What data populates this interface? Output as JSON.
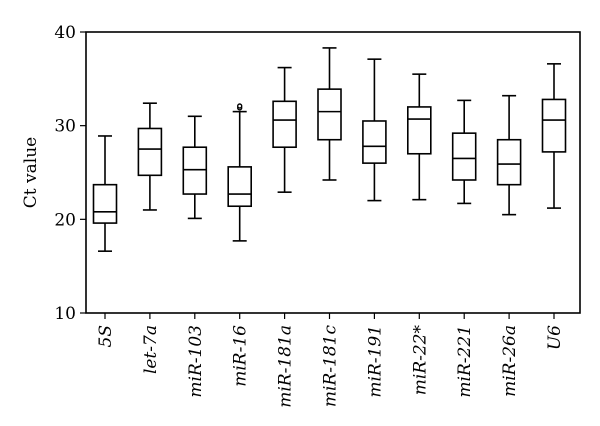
{
  "chart_data": {
    "type": "boxplot",
    "ylabel": "Ct value",
    "ylim": [
      10,
      40
    ],
    "yticks": [
      "10",
      "20",
      "30",
      "40"
    ],
    "grid": false,
    "categories": [
      "5S",
      "let-7a",
      "miR-103",
      "miR-16",
      "miR-181a",
      "miR-181c",
      "miR-191",
      "miR-22*",
      "miR-221",
      "miR-26a",
      "U6"
    ],
    "boxes": [
      {
        "label": "5S",
        "min": 16.6,
        "q1": 19.6,
        "median": 20.8,
        "q3": 23.7,
        "max": 28.9,
        "outliers": []
      },
      {
        "label": "let-7a",
        "min": 21.0,
        "q1": 24.7,
        "median": 27.5,
        "q3": 29.7,
        "max": 32.4,
        "outliers": []
      },
      {
        "label": "miR-103",
        "min": 20.1,
        "q1": 22.7,
        "median": 25.3,
        "q3": 27.7,
        "max": 31.0,
        "outliers": []
      },
      {
        "label": "miR-16",
        "min": 17.7,
        "q1": 21.4,
        "median": 22.7,
        "q3": 25.6,
        "max": 31.5,
        "outliers": [
          31.9,
          32.1
        ]
      },
      {
        "label": "miR-181a",
        "min": 22.9,
        "q1": 27.7,
        "median": 30.6,
        "q3": 32.6,
        "max": 36.2,
        "outliers": []
      },
      {
        "label": "miR-181c",
        "min": 24.2,
        "q1": 28.5,
        "median": 31.5,
        "q3": 33.9,
        "max": 38.3,
        "outliers": []
      },
      {
        "label": "miR-191",
        "min": 22.0,
        "q1": 26.0,
        "median": 27.8,
        "q3": 30.5,
        "max": 37.1,
        "outliers": []
      },
      {
        "label": "miR-22*",
        "min": 22.1,
        "q1": 27.0,
        "median": 30.7,
        "q3": 32.0,
        "max": 35.5,
        "outliers": []
      },
      {
        "label": "miR-221",
        "min": 21.7,
        "q1": 24.2,
        "median": 26.5,
        "q3": 29.2,
        "max": 32.7,
        "outliers": []
      },
      {
        "label": "miR-26a",
        "min": 20.5,
        "q1": 23.7,
        "median": 25.9,
        "q3": 28.5,
        "max": 33.2,
        "outliers": []
      },
      {
        "label": "U6",
        "min": 21.2,
        "q1": 27.2,
        "median": 30.6,
        "q3": 32.8,
        "max": 36.6,
        "outliers": []
      }
    ]
  }
}
